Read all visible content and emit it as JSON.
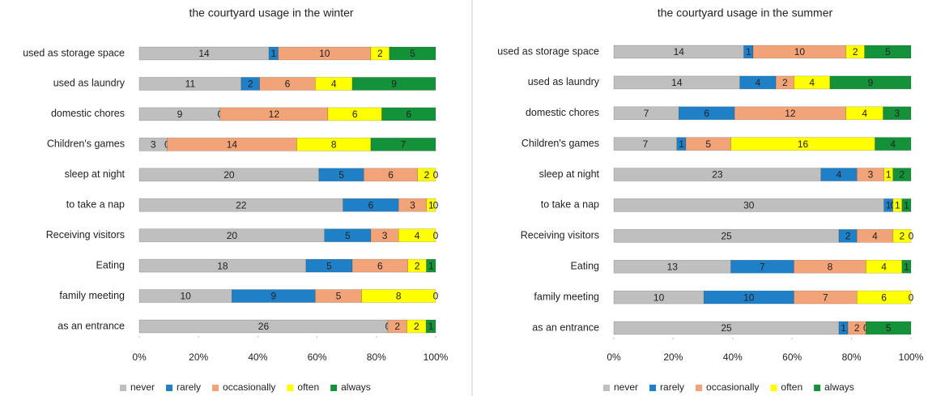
{
  "chart_data": [
    {
      "type": "bar",
      "orientation": "horizontal",
      "stack": "percent",
      "title": "the courtyard usage in the winter",
      "categories": [
        "used as storage space",
        "used as laundry",
        "domestic chores",
        "Children's games",
        "sleep at night",
        "to take a nap",
        "Receiving visitors",
        "Eating",
        "family meeting",
        "as an entrance"
      ],
      "series": [
        {
          "name": "never",
          "color": "#bfbfbf",
          "values": [
            14,
            11,
            9,
            3,
            20,
            22,
            20,
            18,
            10,
            26
          ]
        },
        {
          "name": "rarely",
          "color": "#1f80c8",
          "values": [
            1,
            2,
            0,
            0,
            5,
            6,
            5,
            5,
            9,
            0
          ]
        },
        {
          "name": "occasionally",
          "color": "#f2a478",
          "values": [
            10,
            6,
            12,
            14,
            6,
            3,
            3,
            6,
            5,
            2
          ]
        },
        {
          "name": "often",
          "color": "#ffff00",
          "values": [
            2,
            4,
            6,
            8,
            2,
            1,
            4,
            2,
            8,
            2
          ]
        },
        {
          "name": "always",
          "color": "#13923a",
          "values": [
            5,
            9,
            6,
            7,
            0,
            0,
            0,
            1,
            0,
            1
          ]
        }
      ],
      "xlim": [
        0,
        100
      ],
      "xticks": [
        {
          "value": 0,
          "label": "0%"
        },
        {
          "value": 20,
          "label": "20%"
        },
        {
          "value": 40,
          "label": "40%"
        },
        {
          "value": 60,
          "label": "60%"
        },
        {
          "value": 80,
          "label": "80%"
        },
        {
          "value": 100,
          "label": "100%"
        }
      ],
      "legend": "bottom"
    },
    {
      "type": "bar",
      "orientation": "horizontal",
      "stack": "percent",
      "title": "the courtyard usage in the summer",
      "categories": [
        "used as storage space",
        "used as laundry",
        "domestic chores",
        "Children's games",
        "sleep at night",
        "to take a nap",
        "Receiving visitors",
        "Eating",
        "family meeting",
        "as an entrance"
      ],
      "series": [
        {
          "name": "never",
          "color": "#bfbfbf",
          "values": [
            14,
            14,
            7,
            7,
            23,
            30,
            25,
            13,
            10,
            25
          ]
        },
        {
          "name": "rarely",
          "color": "#1f80c8",
          "values": [
            1,
            4,
            6,
            1,
            4,
            1,
            2,
            7,
            10,
            1
          ]
        },
        {
          "name": "occasionally",
          "color": "#f2a478",
          "values": [
            10,
            2,
            12,
            5,
            3,
            0,
            4,
            8,
            7,
            2
          ]
        },
        {
          "name": "often",
          "color": "#ffff00",
          "values": [
            2,
            4,
            4,
            16,
            1,
            1,
            2,
            4,
            6,
            0
          ]
        },
        {
          "name": "always",
          "color": "#13923a",
          "values": [
            5,
            9,
            3,
            4,
            2,
            1,
            0,
            1,
            0,
            5
          ]
        }
      ],
      "xlim": [
        0,
        100
      ],
      "xticks": [
        {
          "value": 0,
          "label": "0%"
        },
        {
          "value": 20,
          "label": "20%"
        },
        {
          "value": 40,
          "label": "40%"
        },
        {
          "value": 60,
          "label": "60%"
        },
        {
          "value": 80,
          "label": "80%"
        },
        {
          "value": 100,
          "label": "100%"
        }
      ],
      "legend": "bottom"
    }
  ]
}
